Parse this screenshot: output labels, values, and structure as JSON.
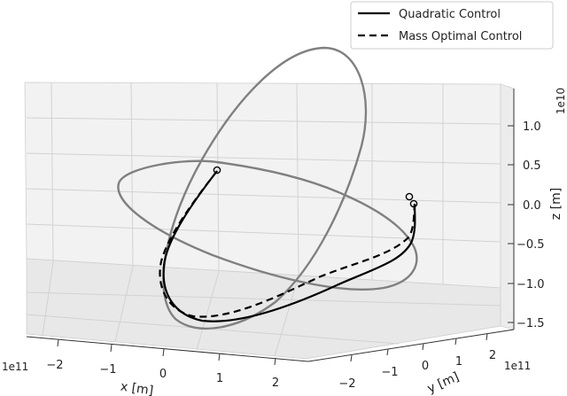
{
  "chart_data": {
    "type": "line",
    "projection": "3d",
    "axes": {
      "x": {
        "label": "x [m]",
        "offset": "1e11",
        "ticks": [
          "−2",
          "−1",
          "0",
          "1",
          "2"
        ]
      },
      "y": {
        "label": "y [m]",
        "offset": "1e11",
        "ticks": [
          "−2",
          "−1",
          "0",
          "1",
          "2"
        ]
      },
      "z": {
        "label": "z [m]",
        "offset": "1e10",
        "ticks": [
          "1.0",
          "0.5",
          "0.0",
          "−0.5",
          "−1.0",
          "−1.5"
        ],
        "ylim": [
          -1.6,
          1.4
        ]
      }
    },
    "legend": {
      "position": "top-right"
    },
    "series": [
      {
        "name": "Quadratic Control",
        "style": "solid",
        "color": "#000000"
      },
      {
        "name": "Mass Optimal Control",
        "style": "dashed",
        "color": "#000000"
      }
    ],
    "orbits": [
      {
        "style": "solid",
        "color": "#7a7a7a"
      },
      {
        "style": "solid",
        "color": "#7a7a7a"
      }
    ],
    "grid": true
  }
}
